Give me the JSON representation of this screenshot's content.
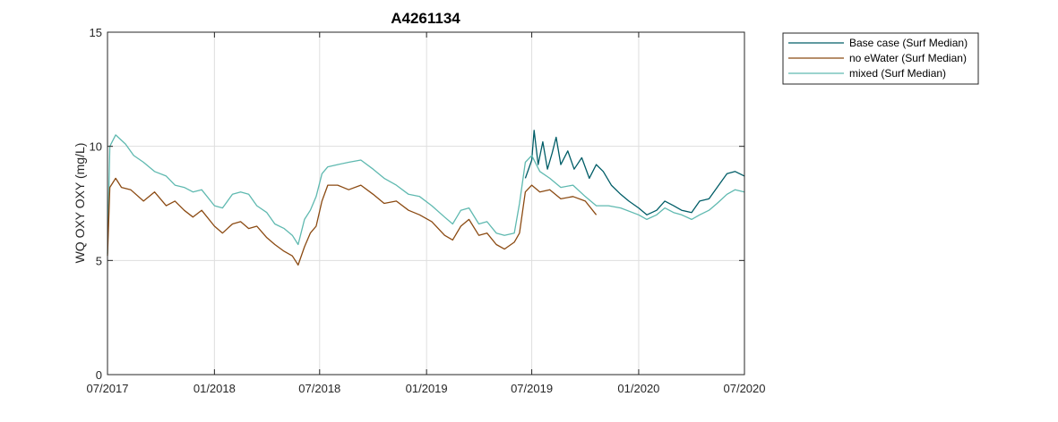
{
  "chart_data": {
    "type": "line",
    "title": "A4261134",
    "xlabel": "",
    "ylabel": "WQ OXY OXY (mg/L)",
    "xlim": [
      "2017-07-01",
      "2020-07-01"
    ],
    "ylim": [
      0,
      15
    ],
    "x_ticks": [
      {
        "date": "2017-07-01",
        "label": "07/2017"
      },
      {
        "date": "2018-01-01",
        "label": "01/2018"
      },
      {
        "date": "2018-07-01",
        "label": "07/2018"
      },
      {
        "date": "2019-01-01",
        "label": "01/2019"
      },
      {
        "date": "2019-07-01",
        "label": "07/2019"
      },
      {
        "date": "2020-01-01",
        "label": "01/2020"
      },
      {
        "date": "2020-07-01",
        "label": "07/2020"
      }
    ],
    "y_ticks": [
      {
        "value": 0,
        "label": "0"
      },
      {
        "value": 5,
        "label": "5"
      },
      {
        "value": 10,
        "label": "10"
      },
      {
        "value": 15,
        "label": "15"
      }
    ],
    "grid": true,
    "legend_position": "outside-top-right",
    "series": [
      {
        "name": "Base case (Surf Median)",
        "color": "#005d67",
        "points": [
          [
            "2019-06-20",
            8.6
          ],
          [
            "2019-07-01",
            9.4
          ],
          [
            "2019-07-05",
            10.7
          ],
          [
            "2019-07-12",
            9.2
          ],
          [
            "2019-07-20",
            10.2
          ],
          [
            "2019-07-28",
            9.0
          ],
          [
            "2019-08-05",
            9.7
          ],
          [
            "2019-08-12",
            10.4
          ],
          [
            "2019-08-20",
            9.2
          ],
          [
            "2019-09-01",
            9.8
          ],
          [
            "2019-09-12",
            9.0
          ],
          [
            "2019-09-25",
            9.5
          ],
          [
            "2019-10-08",
            8.6
          ],
          [
            "2019-10-20",
            9.2
          ],
          [
            "2019-11-01",
            8.9
          ],
          [
            "2019-11-15",
            8.3
          ],
          [
            "2019-12-01",
            7.9
          ],
          [
            "2019-12-15",
            7.6
          ],
          [
            "2020-01-01",
            7.3
          ],
          [
            "2020-01-15",
            7.0
          ],
          [
            "2020-02-01",
            7.2
          ],
          [
            "2020-02-15",
            7.6
          ],
          [
            "2020-03-01",
            7.4
          ],
          [
            "2020-03-15",
            7.2
          ],
          [
            "2020-04-01",
            7.1
          ],
          [
            "2020-04-15",
            7.6
          ],
          [
            "2020-05-01",
            7.7
          ],
          [
            "2020-05-15",
            8.2
          ],
          [
            "2020-06-01",
            8.8
          ],
          [
            "2020-06-15",
            8.9
          ],
          [
            "2020-07-01",
            8.7
          ]
        ]
      },
      {
        "name": "no eWater (Surf Median)",
        "color": "#8b4a12",
        "points": [
          [
            "2017-07-01",
            5.2
          ],
          [
            "2017-07-05",
            8.2
          ],
          [
            "2017-07-15",
            8.6
          ],
          [
            "2017-07-25",
            8.2
          ],
          [
            "2017-08-10",
            8.1
          ],
          [
            "2017-09-01",
            7.6
          ],
          [
            "2017-09-20",
            8.0
          ],
          [
            "2017-10-10",
            7.4
          ],
          [
            "2017-10-25",
            7.6
          ],
          [
            "2017-11-10",
            7.2
          ],
          [
            "2017-11-25",
            6.9
          ],
          [
            "2017-12-10",
            7.2
          ],
          [
            "2018-01-01",
            6.5
          ],
          [
            "2018-01-15",
            6.2
          ],
          [
            "2018-02-01",
            6.6
          ],
          [
            "2018-02-15",
            6.7
          ],
          [
            "2018-03-01",
            6.4
          ],
          [
            "2018-03-15",
            6.5
          ],
          [
            "2018-04-01",
            6.0
          ],
          [
            "2018-04-15",
            5.7
          ],
          [
            "2018-05-01",
            5.4
          ],
          [
            "2018-05-15",
            5.2
          ],
          [
            "2018-05-25",
            4.8
          ],
          [
            "2018-06-05",
            5.6
          ],
          [
            "2018-06-15",
            6.2
          ],
          [
            "2018-06-25",
            6.5
          ],
          [
            "2018-07-05",
            7.6
          ],
          [
            "2018-07-15",
            8.3
          ],
          [
            "2018-08-01",
            8.3
          ],
          [
            "2018-08-20",
            8.1
          ],
          [
            "2018-09-10",
            8.3
          ],
          [
            "2018-10-01",
            7.9
          ],
          [
            "2018-10-20",
            7.5
          ],
          [
            "2018-11-10",
            7.6
          ],
          [
            "2018-12-01",
            7.2
          ],
          [
            "2018-12-20",
            7.0
          ],
          [
            "2019-01-10",
            6.7
          ],
          [
            "2019-02-01",
            6.1
          ],
          [
            "2019-02-15",
            5.9
          ],
          [
            "2019-03-01",
            6.5
          ],
          [
            "2019-03-15",
            6.8
          ],
          [
            "2019-04-01",
            6.1
          ],
          [
            "2019-04-15",
            6.2
          ],
          [
            "2019-05-01",
            5.7
          ],
          [
            "2019-05-15",
            5.5
          ],
          [
            "2019-06-01",
            5.8
          ],
          [
            "2019-06-10",
            6.2
          ],
          [
            "2019-06-20",
            8.0
          ],
          [
            "2019-07-01",
            8.3
          ],
          [
            "2019-07-15",
            8.0
          ],
          [
            "2019-08-01",
            8.1
          ],
          [
            "2019-08-20",
            7.7
          ],
          [
            "2019-09-10",
            7.8
          ],
          [
            "2019-10-01",
            7.6
          ],
          [
            "2019-10-20",
            7.0
          ]
        ]
      },
      {
        "name": "mixed (Surf Median)",
        "color": "#5fb9b0",
        "points": [
          [
            "2017-07-01",
            5.3
          ],
          [
            "2017-07-05",
            10.0
          ],
          [
            "2017-07-15",
            10.5
          ],
          [
            "2017-08-01",
            10.1
          ],
          [
            "2017-08-15",
            9.6
          ],
          [
            "2017-09-01",
            9.3
          ],
          [
            "2017-09-20",
            8.9
          ],
          [
            "2017-10-10",
            8.7
          ],
          [
            "2017-10-25",
            8.3
          ],
          [
            "2017-11-10",
            8.2
          ],
          [
            "2017-11-25",
            8.0
          ],
          [
            "2017-12-10",
            8.1
          ],
          [
            "2018-01-01",
            7.4
          ],
          [
            "2018-01-15",
            7.3
          ],
          [
            "2018-02-01",
            7.9
          ],
          [
            "2018-02-15",
            8.0
          ],
          [
            "2018-03-01",
            7.9
          ],
          [
            "2018-03-15",
            7.4
          ],
          [
            "2018-04-01",
            7.1
          ],
          [
            "2018-04-15",
            6.6
          ],
          [
            "2018-05-01",
            6.4
          ],
          [
            "2018-05-15",
            6.1
          ],
          [
            "2018-05-25",
            5.7
          ],
          [
            "2018-06-05",
            6.8
          ],
          [
            "2018-06-15",
            7.2
          ],
          [
            "2018-06-25",
            7.8
          ],
          [
            "2018-07-05",
            8.8
          ],
          [
            "2018-07-15",
            9.1
          ],
          [
            "2018-08-01",
            9.2
          ],
          [
            "2018-08-20",
            9.3
          ],
          [
            "2018-09-10",
            9.4
          ],
          [
            "2018-10-01",
            9.0
          ],
          [
            "2018-10-20",
            8.6
          ],
          [
            "2018-11-10",
            8.3
          ],
          [
            "2018-12-01",
            7.9
          ],
          [
            "2018-12-20",
            7.8
          ],
          [
            "2019-01-10",
            7.4
          ],
          [
            "2019-02-01",
            6.9
          ],
          [
            "2019-02-15",
            6.6
          ],
          [
            "2019-03-01",
            7.2
          ],
          [
            "2019-03-15",
            7.3
          ],
          [
            "2019-04-01",
            6.6
          ],
          [
            "2019-04-15",
            6.7
          ],
          [
            "2019-05-01",
            6.2
          ],
          [
            "2019-05-15",
            6.1
          ],
          [
            "2019-06-01",
            6.2
          ],
          [
            "2019-06-10",
            7.5
          ],
          [
            "2019-06-20",
            9.3
          ],
          [
            "2019-07-01",
            9.6
          ],
          [
            "2019-07-15",
            8.9
          ],
          [
            "2019-08-01",
            8.6
          ],
          [
            "2019-08-20",
            8.2
          ],
          [
            "2019-09-10",
            8.3
          ],
          [
            "2019-10-01",
            7.8
          ],
          [
            "2019-10-20",
            7.4
          ],
          [
            "2019-11-10",
            7.4
          ],
          [
            "2019-12-01",
            7.3
          ],
          [
            "2020-01-01",
            7.0
          ],
          [
            "2020-01-15",
            6.8
          ],
          [
            "2020-02-01",
            7.0
          ],
          [
            "2020-02-15",
            7.3
          ],
          [
            "2020-03-01",
            7.1
          ],
          [
            "2020-03-15",
            7.0
          ],
          [
            "2020-04-01",
            6.8
          ],
          [
            "2020-04-15",
            7.0
          ],
          [
            "2020-05-01",
            7.2
          ],
          [
            "2020-05-15",
            7.5
          ],
          [
            "2020-06-01",
            7.9
          ],
          [
            "2020-06-15",
            8.1
          ],
          [
            "2020-07-01",
            8.0
          ]
        ]
      }
    ]
  }
}
